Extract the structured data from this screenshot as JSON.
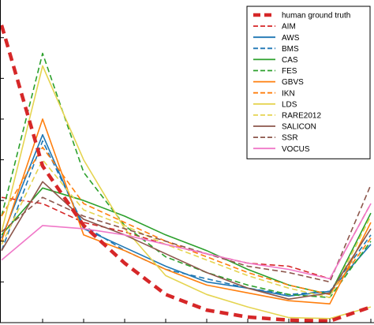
{
  "chart_data": {
    "type": "line",
    "title": "",
    "xlabel": "",
    "ylabel": "",
    "x": [
      0,
      1,
      2,
      3,
      4,
      5,
      6,
      7,
      8,
      9
    ],
    "xlim": [
      0,
      9
    ],
    "ylim": [
      0,
      100
    ],
    "grid": false,
    "legend_position": "top-right",
    "series": [
      {
        "name": "human ground truth",
        "color": "#d62728",
        "dash": "dashed-thick",
        "values": [
          95,
          50,
          31,
          19,
          9,
          4,
          1.8,
          0.8,
          0.5,
          5
        ]
      },
      {
        "name": "AIM",
        "color": "#d62728",
        "dash": "dashed",
        "values": [
          40,
          38,
          32,
          29,
          25,
          22,
          19,
          18,
          14,
          38
        ]
      },
      {
        "name": "AWS",
        "color": "#1f77b4",
        "dash": "solid",
        "values": [
          27,
          60,
          30,
          24,
          18,
          13,
          11,
          8.5,
          10,
          25
        ]
      },
      {
        "name": "BMS",
        "color": "#1f77b4",
        "dash": "dashed",
        "values": [
          23,
          58,
          31,
          23,
          17,
          14,
          11,
          9,
          10,
          28
        ]
      },
      {
        "name": "CAS",
        "color": "#2ca02c",
        "dash": "solid",
        "values": [
          28,
          43,
          39,
          34,
          28,
          23,
          17,
          12,
          9,
          35
        ]
      },
      {
        "name": "FES",
        "color": "#2ca02c",
        "dash": "dashed",
        "values": [
          34,
          86,
          48,
          31,
          21,
          16,
          12,
          9,
          8,
          26
        ]
      },
      {
        "name": "GBVS",
        "color": "#ff7f0e",
        "dash": "solid",
        "values": [
          26,
          65,
          28,
          23,
          17,
          12,
          9.5,
          7,
          6,
          32
        ]
      },
      {
        "name": "IKN",
        "color": "#ff7f0e",
        "dash": "dashed",
        "values": [
          34,
          56,
          38,
          32,
          26,
          21,
          16,
          12,
          9,
          27
        ]
      },
      {
        "name": "LDS",
        "color": "#e5d450",
        "dash": "solid",
        "values": [
          29,
          82,
          52,
          30,
          15,
          9,
          5,
          1.6,
          1.3,
          5
        ]
      },
      {
        "name": "RARE2012",
        "color": "#e5d450",
        "dash": "dashed",
        "values": [
          25,
          52,
          36,
          31,
          25,
          20,
          15,
          11,
          8,
          34
        ]
      },
      {
        "name": "SALICON",
        "color": "#8c564b",
        "dash": "solid",
        "values": [
          23,
          45,
          33,
          28,
          22,
          16,
          11,
          7.5,
          9.5,
          30
        ]
      },
      {
        "name": "SSR",
        "color": "#8c564b",
        "dash": "dashed",
        "values": [
          29,
          40,
          34,
          30,
          26,
          22,
          18,
          16,
          13,
          44
        ]
      },
      {
        "name": "VOCUS",
        "color": "#f078c8",
        "dash": "solid",
        "values": [
          20,
          31,
          30,
          28,
          25,
          22,
          19,
          17,
          14,
          38
        ]
      }
    ]
  }
}
